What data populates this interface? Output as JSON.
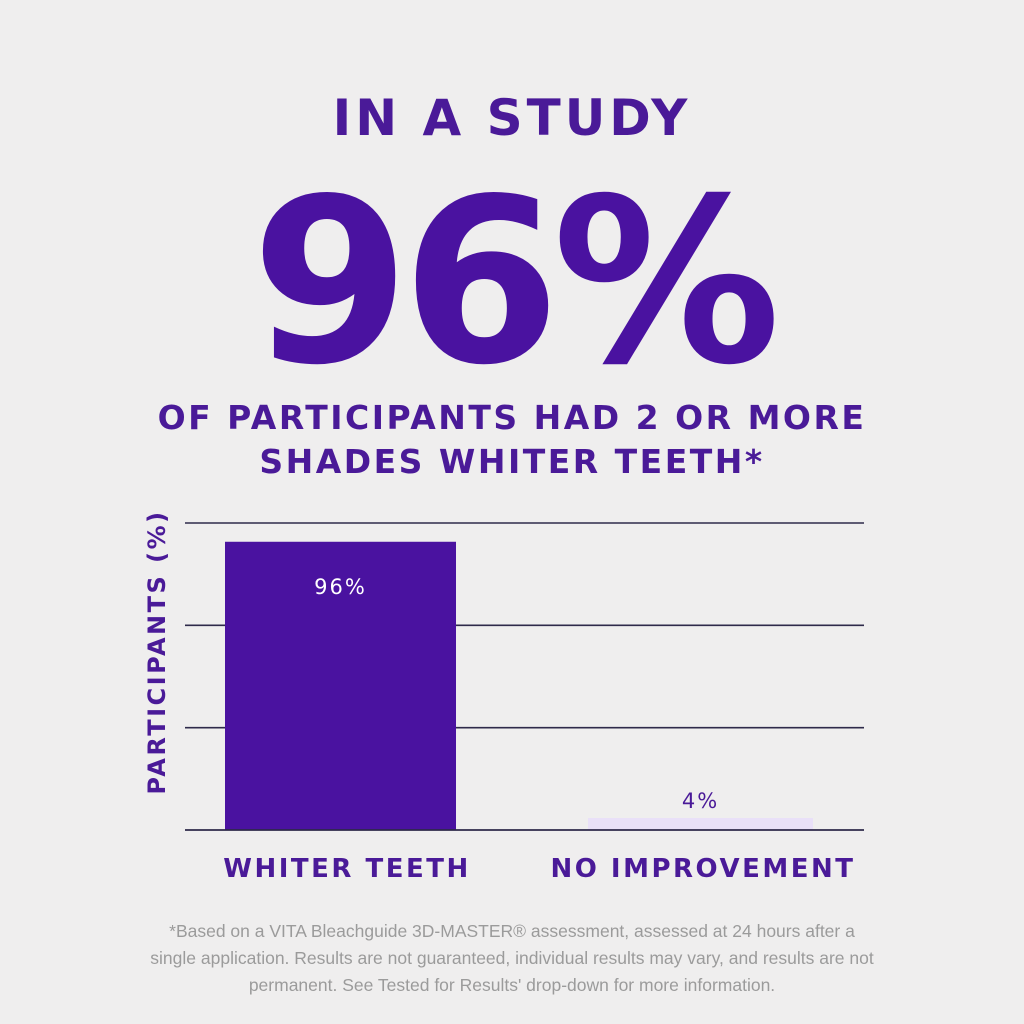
{
  "headline": "IN A STUDY",
  "big_stat": "96%",
  "subheadline": "OF PARTICIPANTS HAD 2 OR MORE SHADES WHITER TEETH*",
  "colors": {
    "primary": "#4a12a0",
    "secondary_bar": "#e9e0f8",
    "text": "#4a1a98",
    "footnote": "#9b9b9b",
    "background": "#efeeee"
  },
  "chart_data": {
    "type": "bar",
    "categories": [
      "WHITER TEETH",
      "NO IMPROVEMENT"
    ],
    "values": [
      96,
      4
    ],
    "data_labels": [
      "96%",
      "4%"
    ],
    "ylabel": "PARTICIPANTS (%)",
    "xlabel": "",
    "ylim": [
      0,
      100
    ],
    "grid": true
  },
  "footnote": "*Based on a VITA Bleachguide 3D-MASTER® assessment, assessed at 24 hours after a single application. Results are not guaranteed, individual results may vary, and results are not permanent. See Tested for Results' drop-down for more information."
}
